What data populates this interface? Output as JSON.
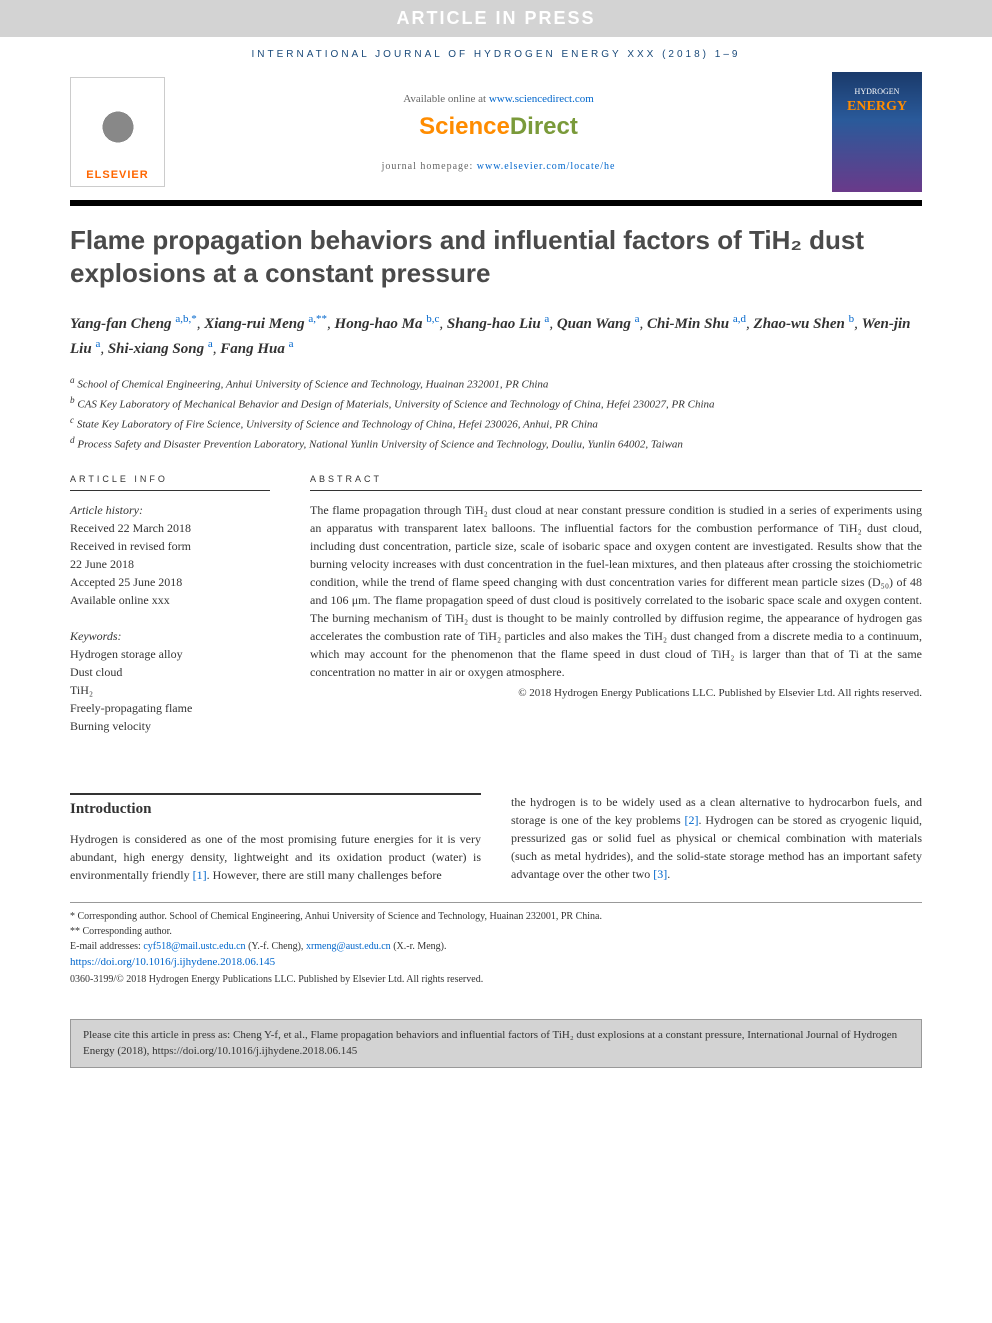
{
  "banner": "ARTICLE IN PRESS",
  "journal_header": "INTERNATIONAL JOURNAL OF HYDROGEN ENERGY XXX (2018) 1–9",
  "available": {
    "prefix": "Available online at ",
    "url": "www.sciencedirect.com"
  },
  "sciencedirect": {
    "part1": "Science",
    "part2": "Direct"
  },
  "homepage": {
    "prefix": "journal homepage: ",
    "url": "www.elsevier.com/locate/he"
  },
  "elsevier": "ELSEVIER",
  "cover": {
    "line1": "HYDROGEN",
    "line2": "ENERGY"
  },
  "title": "Flame propagation behaviors and influential factors of TiH₂ dust explosions at a constant pressure",
  "authors": [
    {
      "name": "Yang-fan Cheng",
      "affil": "a,b,*"
    },
    {
      "name": "Xiang-rui Meng",
      "affil": "a,**"
    },
    {
      "name": "Hong-hao Ma",
      "affil": "b,c"
    },
    {
      "name": "Shang-hao Liu",
      "affil": "a"
    },
    {
      "name": "Quan Wang",
      "affil": "a"
    },
    {
      "name": "Chi-Min Shu",
      "affil": "a,d"
    },
    {
      "name": "Zhao-wu Shen",
      "affil": "b"
    },
    {
      "name": "Wen-jin Liu",
      "affil": "a"
    },
    {
      "name": "Shi-xiang Song",
      "affil": "a"
    },
    {
      "name": "Fang Hua",
      "affil": "a"
    }
  ],
  "affiliations": {
    "a": "School of Chemical Engineering, Anhui University of Science and Technology, Huainan 232001, PR China",
    "b": "CAS Key Laboratory of Mechanical Behavior and Design of Materials, University of Science and Technology of China, Hefei 230027, PR China",
    "c": "State Key Laboratory of Fire Science, University of Science and Technology of China, Hefei 230026, Anhui, PR China",
    "d": "Process Safety and Disaster Prevention Laboratory, National Yunlin University of Science and Technology, Douliu, Yunlin 64002, Taiwan"
  },
  "info_label": "ARTICLE INFO",
  "abstract_label": "ABSTRACT",
  "history_head": "Article history:",
  "history": {
    "received": "Received 22 March 2018",
    "revised1": "Received in revised form",
    "revised2": "22 June 2018",
    "accepted": "Accepted 25 June 2018",
    "online": "Available online xxx"
  },
  "keywords_head": "Keywords:",
  "keywords": [
    "Hydrogen storage alloy",
    "Dust cloud",
    "TiH₂",
    "Freely-propagating flame",
    "Burning velocity"
  ],
  "abstract": "The flame propagation through TiH₂ dust cloud at near constant pressure condition is studied in a series of experiments using an apparatus with transparent latex balloons. The influential factors for the combustion performance of TiH₂ dust cloud, including dust concentration, particle size, scale of isobaric space and oxygen content are investigated. Results show that the burning velocity increases with dust concentration in the fuel-lean mixtures, and then plateaus after crossing the stoichiometric condition, while the trend of flame speed changing with dust concentration varies for different mean particle sizes (D₅₀) of 48 and 106 μm. The flame propagation speed of dust cloud is positively correlated to the isobaric space scale and oxygen content. The burning mechanism of TiH₂ dust is thought to be mainly controlled by diffusion regime, the appearance of hydrogen gas accelerates the combustion rate of TiH₂ particles and also makes the TiH₂ dust changed from a discrete media to a continuum, which may account for the phenomenon that the flame speed in dust cloud of TiH₂ is larger than that of Ti at the same concentration no matter in air or oxygen atmosphere.",
  "copyright": "© 2018 Hydrogen Energy Publications LLC. Published by Elsevier Ltd. All rights reserved.",
  "intro_head": "Introduction",
  "intro_col1": "Hydrogen is considered as one of the most promising future energies for it is very abundant, high energy density, lightweight and its oxidation product (water) is environmentally friendly [1]. However, there are still many challenges before",
  "intro_col2": "the hydrogen is to be widely used as a clean alternative to hydrocarbon fuels, and storage is one of the key problems [2]. Hydrogen can be stored as cryogenic liquid, pressurized gas or solid fuel as physical or chemical combination with materials (such as metal hydrides), and the solid-state storage method has an important safety advantage over the other two [3].",
  "footnotes": {
    "corr1": "* Corresponding author. School of Chemical Engineering, Anhui University of Science and Technology, Huainan 232001, PR China.",
    "corr2": "** Corresponding author.",
    "email_label": "E-mail addresses: ",
    "email1": "cyf518@mail.ustc.edu.cn",
    "email1_name": " (Y.-f. Cheng), ",
    "email2": "xrmeng@aust.edu.cn",
    "email2_name": " (X.-r. Meng).",
    "doi": "https://doi.org/10.1016/j.ijhydene.2018.06.145",
    "issn_copy": "0360-3199/© 2018 Hydrogen Energy Publications LLC. Published by Elsevier Ltd. All rights reserved."
  },
  "citebox": "Please cite this article in press as: Cheng Y-f, et al., Flame propagation behaviors and influential factors of TiH₂ dust explosions at a constant pressure, International Journal of Hydrogen Energy (2018), https://doi.org/10.1016/j.ijhydene.2018.06.145"
}
